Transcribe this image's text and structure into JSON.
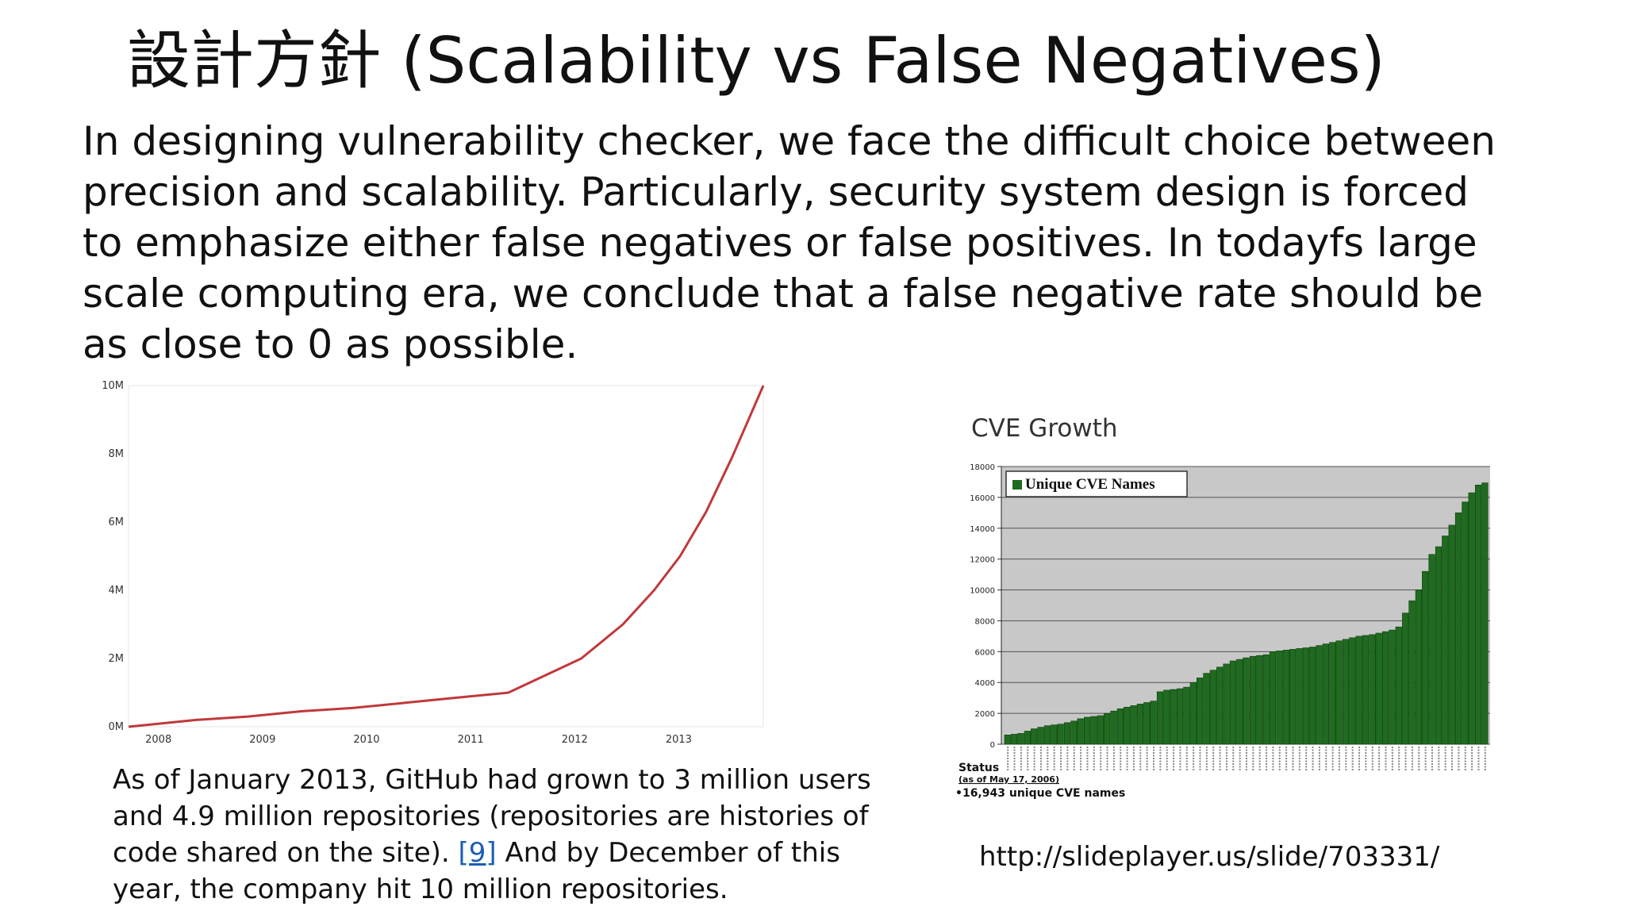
{
  "slide": {
    "title": "設計方針 (Scalability vs False Negatives)",
    "body": "In designing vulnerability checker, we face the difficult choice   between\nprecision and scalability. Particularly, security system   design is forced\nto emphasize either false negatives or false positives. In todayfs large\nscale computing era, we conclude that a   false negative rate should be\nas close to 0 as possible.",
    "caption_part1": "As of January 2013, GitHub had grown to 3 million users and 4.9 million repositories (repositories are histories of code shared on the site). ",
    "caption_ref": "[9]",
    "caption_part2": " And by December of this year, the company hit 10 million repositories.",
    "source_url": "http://slideplayer.us/slide/703331/"
  },
  "chart_data": [
    {
      "type": "line",
      "title": "",
      "xlabel": "",
      "ylabel": "",
      "x_ticks": [
        "2008",
        "2009",
        "2010",
        "2011",
        "2012",
        "2013"
      ],
      "y_ticks": [
        "0M",
        "2M",
        "4M",
        "6M",
        "8M",
        "10M"
      ],
      "ylim": [
        0,
        10
      ],
      "xlim": [
        2007.85,
        2013.95
      ],
      "grid": false,
      "series": [
        {
          "color": "#c0393b",
          "x": [
            2007.85,
            2008.5,
            2009.0,
            2009.5,
            2010.0,
            2010.5,
            2011.0,
            2011.5,
            2012.2,
            2012.6,
            2012.9,
            2013.15,
            2013.4,
            2013.65,
            2013.95
          ],
          "y": [
            0.0,
            0.2,
            0.3,
            0.45,
            0.55,
            0.7,
            0.85,
            1.0,
            2.0,
            3.0,
            4.0,
            5.0,
            6.3,
            7.9,
            10.0
          ]
        }
      ]
    },
    {
      "type": "bar",
      "title": "CVE Growth",
      "legend": [
        "Unique CVE Names"
      ],
      "legend_position": "top-left",
      "y_ticks": [
        0,
        2000,
        4000,
        6000,
        8000,
        10000,
        12000,
        14000,
        16000,
        18000
      ],
      "ylim": [
        0,
        18000
      ],
      "grid": true,
      "bar_color": "#1f6b1f",
      "plot_background": "#c8c8c8",
      "values": [
        600,
        650,
        700,
        850,
        1000,
        1100,
        1200,
        1250,
        1300,
        1400,
        1500,
        1650,
        1750,
        1800,
        1850,
        2000,
        2150,
        2300,
        2400,
        2500,
        2600,
        2700,
        2800,
        3400,
        3500,
        3550,
        3600,
        3700,
        4000,
        4300,
        4600,
        4800,
        5000,
        5200,
        5400,
        5500,
        5600,
        5700,
        5750,
        5800,
        6000,
        6050,
        6100,
        6150,
        6200,
        6250,
        6300,
        6400,
        6500,
        6600,
        6700,
        6800,
        6900,
        7000,
        7050,
        7100,
        7200,
        7300,
        7400,
        7600,
        8500,
        9300,
        10000,
        11200,
        12300,
        12800,
        13500,
        14200,
        15000,
        15700,
        16300,
        16800,
        16943
      ],
      "status_label": "Status",
      "status_date": "(as of May 17, 2006)",
      "status_count": "•16,943 unique CVE names"
    }
  ]
}
